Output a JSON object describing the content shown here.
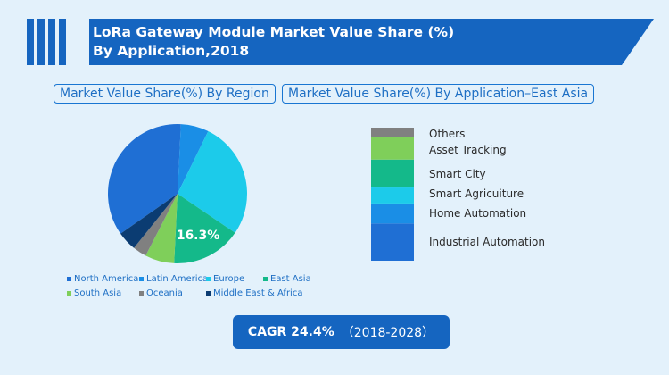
{
  "title": {
    "line1": "LoRa Gateway Module Market Value Share (%)",
    "line2": "By Application,2018"
  },
  "tabs": {
    "region": "Market Value Share(%) By Region",
    "application": "Market Value Share(%) By Application–East Asia"
  },
  "cagr": {
    "value": "CAGR 24.4%",
    "period": "（2018-2028）"
  },
  "chart_data": [
    {
      "type": "pie",
      "title": "Market Value Share(%) By Region",
      "categories": [
        "North America",
        "Latin America",
        "Europe",
        "East Asia",
        "South Asia",
        "Oceania",
        "Middle East & Africa"
      ],
      "values": [
        35.5,
        6.5,
        27.2,
        16.3,
        6.8,
        3.2,
        4.5
      ],
      "colors": [
        "#1f6fd4",
        "#1a8ee6",
        "#1ccbea",
        "#14b98a",
        "#7fcf5a",
        "#808080",
        "#0b3c72"
      ],
      "data_labels": [
        "",
        "",
        "",
        "16.3%",
        "",
        "",
        ""
      ],
      "legend_placement": "bottom"
    },
    {
      "type": "bar",
      "stacked": true,
      "title": "Market Value Share(%) By Application–East Asia",
      "categories": [
        "Industrial Automation",
        "Home Automation",
        "Smart Agricuiture",
        "Smart City",
        "Asset Tracking",
        "Others"
      ],
      "values": [
        28,
        15,
        12,
        21,
        17,
        7
      ],
      "colors": [
        "#1f6fd4",
        "#1a8ee6",
        "#1ccbea",
        "#14b98a",
        "#7fcf5a",
        "#808080"
      ],
      "legend_placement": "right"
    }
  ]
}
